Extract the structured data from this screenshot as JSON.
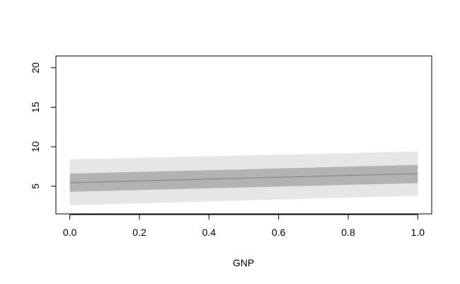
{
  "chart_data": {
    "type": "line",
    "title": "",
    "xlabel": "GNP",
    "ylabel": "",
    "xlim": [
      -0.04,
      1.04
    ],
    "ylim": [
      1.5,
      21.5
    ],
    "x_ticks": [
      0.0,
      0.2,
      0.4,
      0.6,
      0.8,
      1.0
    ],
    "x_tick_labels": [
      "0.0",
      "0.2",
      "0.4",
      "0.6",
      "0.8",
      "1.0"
    ],
    "y_ticks": [
      5,
      10,
      15,
      20
    ],
    "y_tick_labels": [
      "5",
      "10",
      "15",
      "20"
    ],
    "grid": false,
    "legend": "none",
    "x": [
      0.0,
      1.0
    ],
    "series": [
      {
        "role": "outer-band",
        "lower": [
          2.6,
          3.8
        ],
        "upper": [
          8.4,
          9.4
        ],
        "color": "#e6e6e6"
      },
      {
        "role": "inner-band",
        "lower": [
          4.3,
          5.4
        ],
        "upper": [
          6.6,
          7.7
        ],
        "color": "#b3b3b3"
      },
      {
        "role": "center-line",
        "values": [
          5.45,
          6.6
        ],
        "color": "#7f7f7f"
      }
    ]
  }
}
